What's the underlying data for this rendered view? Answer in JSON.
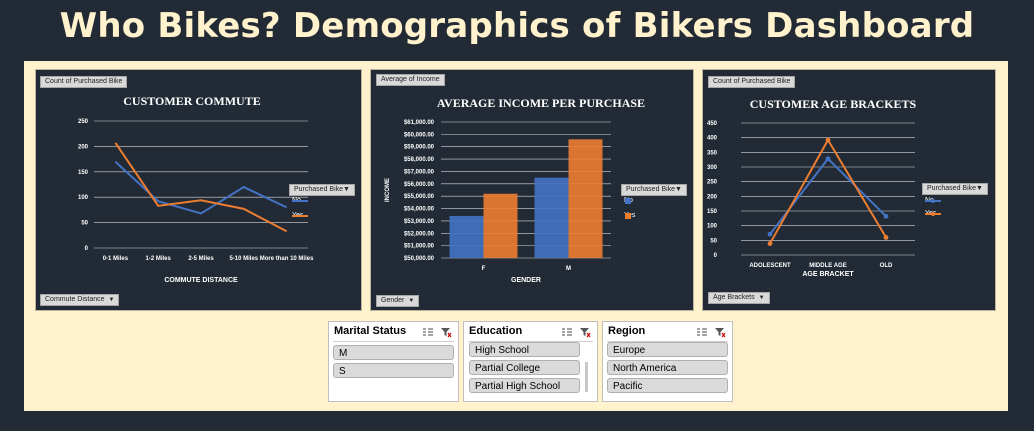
{
  "dashboard_title": "Who Bikes? Demographics of Bikers Dashboard",
  "colors": {
    "no": "#4472c4",
    "yes": "#ed7d31",
    "panel_bg": "#222b35",
    "canvas_bg": "#fff2cc"
  },
  "charts": {
    "commute": {
      "value_button": "Count of Purchased Bike",
      "axis_button": "Commute Distance",
      "legend_button": "Purchased Bike",
      "legend_items": [
        "No",
        "Yes"
      ]
    },
    "income": {
      "value_button": "Average of Income",
      "axis_button": "Gender",
      "legend_button": "Purchased Bike",
      "legend_items": [
        "No",
        "Yes"
      ]
    },
    "age": {
      "value_button": "Count of Purchased Bike",
      "axis_button": "Age Brackets",
      "legend_button": "Purchased Bike",
      "legend_items": [
        "No",
        "Yes"
      ]
    }
  },
  "chart_data": [
    {
      "type": "line",
      "title": "CUSTOMER COMMUTE",
      "xlabel": "COMMUTE DISTANCE",
      "ylabel": "",
      "categories": [
        "0-1 Miles",
        "1-2 Miles",
        "2-5 Miles",
        "5-10 Miles",
        "More than 10 Miles"
      ],
      "series": [
        {
          "name": "No",
          "values": [
            170,
            92,
            68,
            120,
            80
          ]
        },
        {
          "name": "Yes",
          "values": [
            207,
            83,
            94,
            77,
            33
          ]
        }
      ],
      "ylim": [
        0,
        250
      ],
      "yticks": [
        "250",
        "200",
        "150",
        "100",
        "50",
        "0"
      ],
      "legend": "right",
      "grid": true
    },
    {
      "type": "bar",
      "title": "AVERAGE INCOME PER PURCHASE",
      "xlabel": "GENDER",
      "ylabel": "INCOME",
      "categories": [
        "F",
        "M"
      ],
      "series": [
        {
          "name": "No",
          "values": [
            53400,
            56500
          ]
        },
        {
          "name": "Yes",
          "values": [
            55200,
            59600
          ]
        }
      ],
      "ylim": [
        50000,
        61000
      ],
      "yticks": [
        "$61,000.00",
        "$60,000.00",
        "$59,000.00",
        "$58,000.00",
        "$57,000.00",
        "$56,000.00",
        "$55,000.00",
        "$54,000.00",
        "$53,000.00",
        "$52,000.00",
        "$51,000.00",
        "$50,000.00"
      ],
      "legend": "right",
      "grid": true
    },
    {
      "type": "line",
      "title": "CUSTOMER AGE BRACKETS",
      "xlabel": "AGE BRACKET",
      "ylabel": "",
      "categories": [
        "ADOLESCENT",
        "MIDDLE AGE",
        "OLD"
      ],
      "series": [
        {
          "name": "No",
          "values": [
            71,
            328,
            132
          ]
        },
        {
          "name": "Yes",
          "values": [
            39,
            392,
            60
          ]
        }
      ],
      "ylim": [
        0,
        450
      ],
      "yticks": [
        "450",
        "400",
        "350",
        "300",
        "250",
        "200",
        "150",
        "100",
        "50",
        "0"
      ],
      "legend": "right",
      "grid": true
    }
  ],
  "slicers": {
    "marital": {
      "header": "Marital Status",
      "items": [
        "M",
        "S"
      ]
    },
    "education": {
      "header": "Education",
      "items": [
        "High School",
        "Partial College",
        "Partial High School"
      ]
    },
    "region": {
      "header": "Region",
      "items": [
        "Europe",
        "North America",
        "Pacific"
      ]
    }
  }
}
